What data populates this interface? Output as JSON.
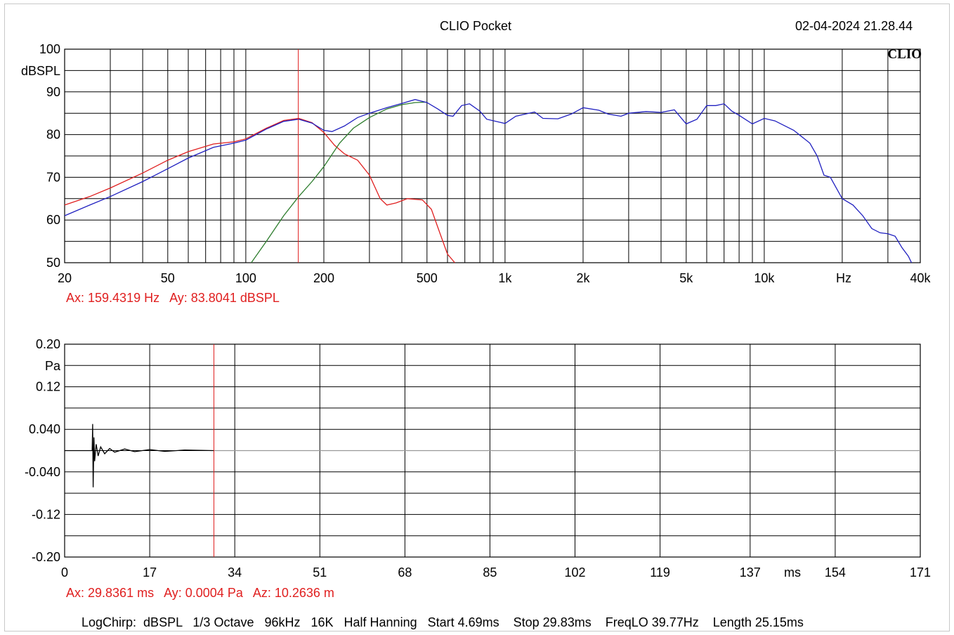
{
  "header": {
    "title": "CLIO Pocket",
    "datetime": "02-04-2024 21.28.44",
    "logo": "CLIO"
  },
  "chart_data": [
    {
      "type": "line",
      "xscale": "log",
      "xlim": [
        20,
        40000
      ],
      "ylim": [
        50,
        100
      ],
      "ylabel": "dBSPL",
      "xunit": "Hz",
      "xticks": [
        {
          "v": 20,
          "label": "20"
        },
        {
          "v": 50,
          "label": "50"
        },
        {
          "v": 100,
          "label": "100"
        },
        {
          "v": 200,
          "label": "200"
        },
        {
          "v": 500,
          "label": "500"
        },
        {
          "v": 1000,
          "label": "1k"
        },
        {
          "v": 2000,
          "label": "2k"
        },
        {
          "v": 5000,
          "label": "5k"
        },
        {
          "v": 10000,
          "label": "10k"
        },
        {
          "v": 40000,
          "label": "40k"
        }
      ],
      "yticks": [
        "50",
        "60",
        "70",
        "80",
        "90",
        "100"
      ],
      "grid": true,
      "cursor_x": 159.4319,
      "series": [
        {
          "color": "#e02020",
          "points": [
            [
              20,
              63.5
            ],
            [
              25,
              65.5
            ],
            [
              30,
              67.5
            ],
            [
              40,
              71
            ],
            [
              50,
              74
            ],
            [
              60,
              76
            ],
            [
              75,
              77.8
            ],
            [
              90,
              78.3
            ],
            [
              100,
              79
            ],
            [
              120,
              81.5
            ],
            [
              140,
              83.3
            ],
            [
              160,
              83.8
            ],
            [
              180,
              82.8
            ],
            [
              200,
              80.5
            ],
            [
              220,
              77.5
            ],
            [
              240,
              75.5
            ],
            [
              270,
              74
            ],
            [
              300,
              70.5
            ],
            [
              330,
              65
            ],
            [
              350,
              63.5
            ],
            [
              380,
              64
            ],
            [
              420,
              65
            ],
            [
              480,
              64.7
            ],
            [
              520,
              62.5
            ],
            [
              560,
              57
            ],
            [
              600,
              52
            ],
            [
              640,
              50
            ]
          ]
        },
        {
          "color": "#2e7d2e",
          "points": [
            [
              105,
              50
            ],
            [
              120,
              55
            ],
            [
              140,
              61
            ],
            [
              160,
              65.5
            ],
            [
              180,
              69
            ],
            [
              200,
              72.5
            ],
            [
              230,
              78
            ],
            [
              260,
              81.5
            ],
            [
              300,
              84
            ],
            [
              350,
              86
            ],
            [
              400,
              87
            ],
            [
              450,
              87.5
            ],
            [
              500,
              87.6
            ]
          ]
        },
        {
          "color": "#2020c0",
          "points": [
            [
              20,
              61
            ],
            [
              25,
              63.5
            ],
            [
              30,
              65.5
            ],
            [
              40,
              69
            ],
            [
              50,
              72
            ],
            [
              60,
              74.5
            ],
            [
              75,
              77
            ],
            [
              90,
              78
            ],
            [
              100,
              78.7
            ],
            [
              120,
              81.3
            ],
            [
              140,
              83.1
            ],
            [
              160,
              83.6
            ],
            [
              180,
              82.7
            ],
            [
              200,
              81
            ],
            [
              215,
              80.7
            ],
            [
              240,
              82
            ],
            [
              270,
              84
            ],
            [
              300,
              85
            ],
            [
              350,
              86.3
            ],
            [
              400,
              87.3
            ],
            [
              450,
              88.2
            ],
            [
              500,
              87.5
            ],
            [
              550,
              86
            ],
            [
              600,
              84.5
            ],
            [
              630,
              84.3
            ],
            [
              680,
              86.8
            ],
            [
              730,
              87.2
            ],
            [
              800,
              85.5
            ],
            [
              850,
              83.6
            ],
            [
              1000,
              82.6
            ],
            [
              1100,
              84.3
            ],
            [
              1300,
              85.3
            ],
            [
              1400,
              83.8
            ],
            [
              1600,
              83.7
            ],
            [
              1800,
              84.8
            ],
            [
              2000,
              86.3
            ],
            [
              2300,
              85.7
            ],
            [
              2500,
              84.8
            ],
            [
              2800,
              84.3
            ],
            [
              3000,
              85
            ],
            [
              3500,
              85.4
            ],
            [
              4000,
              85.2
            ],
            [
              4500,
              85.8
            ],
            [
              5000,
              82.5
            ],
            [
              5500,
              83.6
            ],
            [
              6000,
              86.8
            ],
            [
              6500,
              86.8
            ],
            [
              7000,
              87.2
            ],
            [
              7500,
              85.5
            ],
            [
              8000,
              84.5
            ],
            [
              9000,
              82.5
            ],
            [
              10000,
              83.8
            ],
            [
              11000,
              83.2
            ],
            [
              13000,
              81
            ],
            [
              15000,
              78
            ],
            [
              16000,
              75
            ],
            [
              17000,
              70.5
            ],
            [
              18000,
              70
            ],
            [
              20000,
              65
            ],
            [
              22000,
              63.5
            ],
            [
              24000,
              61
            ],
            [
              26000,
              58
            ],
            [
              28000,
              57
            ],
            [
              30000,
              56.8
            ],
            [
              32000,
              56.2
            ],
            [
              34000,
              53.5
            ],
            [
              36000,
              51.5
            ],
            [
              37000,
              50
            ]
          ]
        }
      ]
    },
    {
      "type": "line",
      "xlim": [
        0,
        171
      ],
      "ylim": [
        -0.2,
        0.2
      ],
      "ylabel": "Pa",
      "xunit": "ms",
      "xticks": [
        "0",
        "17",
        "34",
        "51",
        "68",
        "85",
        "102",
        "119",
        "137",
        "154",
        "171"
      ],
      "yticks": [
        "0.20",
        "0.12",
        "0.040",
        "-0.040",
        "-0.12",
        "-0.20"
      ],
      "grid": true,
      "cursor_x": 29.8361,
      "series": [
        {
          "color": "#000000",
          "points": [
            [
              0,
              0
            ],
            [
              5.5,
              0
            ],
            [
              5.6,
              0.05
            ],
            [
              5.7,
              -0.069
            ],
            [
              5.85,
              0.025
            ],
            [
              6,
              -0.02
            ],
            [
              6.3,
              0.012
            ],
            [
              6.7,
              -0.01
            ],
            [
              7.2,
              0.007
            ],
            [
              8,
              -0.006
            ],
            [
              9,
              0.004
            ],
            [
              10,
              -0.003
            ],
            [
              12,
              0.003
            ],
            [
              14,
              -0.002
            ],
            [
              17,
              0.002
            ],
            [
              20,
              -0.0015
            ],
            [
              24,
              0.001
            ],
            [
              29.8,
              0
            ]
          ]
        },
        {
          "color": "#999999",
          "points": [
            [
              29.8,
              0
            ],
            [
              171,
              0
            ]
          ]
        }
      ]
    }
  ],
  "readouts": {
    "top": "Ax: 159.4319 Hz   Ay: 83.8041 dBSPL",
    "bottom": "Ax: 29.8361 ms   Ay: 0.0004 Pa   Az: 10.2636 m"
  },
  "footer": "LogChirp:  dBSPL   1/3 Octave   96kHz   16K   Half Hanning   Start 4.69ms    Stop 29.83ms    FreqLO 39.77Hz    Length 25.15ms"
}
